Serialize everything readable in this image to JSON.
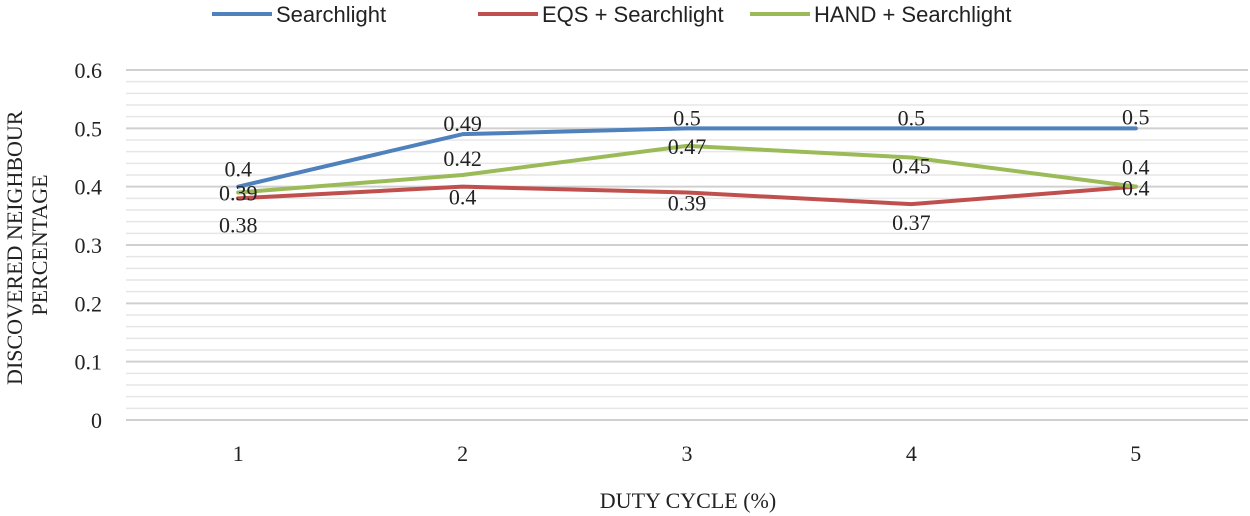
{
  "chart_data": {
    "type": "line",
    "title": "",
    "xlabel": "DUTY CYCLE (%)",
    "ylabel_lines": [
      "DISCOVERED NEIGHBOUR",
      "PERCENTAGE"
    ],
    "categories": [
      "1",
      "2",
      "3",
      "4",
      "5"
    ],
    "ylim": [
      0,
      0.6
    ],
    "yticks": [
      "0",
      "0.1",
      "0.2",
      "0.3",
      "0.4",
      "0.5",
      "0.6"
    ],
    "ytick_values": [
      0,
      0.1,
      0.2,
      0.3,
      0.4,
      0.5,
      0.6
    ],
    "grid": true,
    "legend_position": "top",
    "series": [
      {
        "name": "Searchlight",
        "color": "#4f81bd",
        "values": [
          0.4,
          0.49,
          0.5,
          0.5,
          0.5
        ],
        "labels": [
          "0.4",
          "0.49",
          "0.5",
          "0.5",
          "0.5"
        ]
      },
      {
        "name": "EQS + Searchlight",
        "color": "#c0504d",
        "values": [
          0.38,
          0.4,
          0.39,
          0.37,
          0.4
        ],
        "labels": [
          "0.38",
          "0.4",
          "0.39",
          "0.37",
          "0.4"
        ]
      },
      {
        "name": "HAND + Searchlight",
        "color": "#9bbb59",
        "values": [
          0.39,
          0.42,
          0.47,
          0.45,
          0.4
        ],
        "labels": [
          "0.39",
          "0.42",
          "0.47",
          "0.45",
          "0.4"
        ]
      }
    ]
  }
}
